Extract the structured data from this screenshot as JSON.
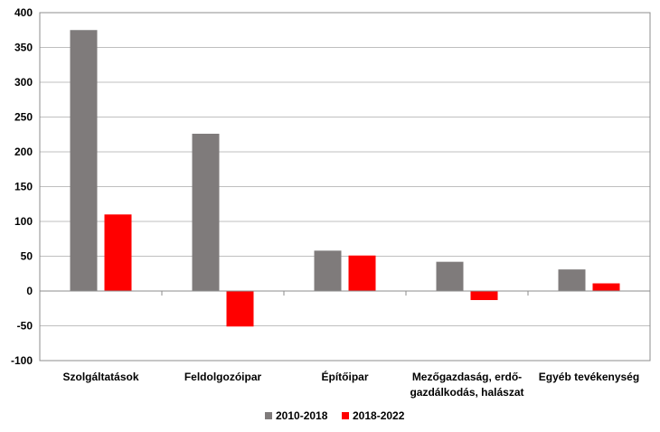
{
  "chart_data": {
    "type": "bar",
    "categories": [
      [
        "Szolgáltatások"
      ],
      [
        "Feldolgozóipar"
      ],
      [
        "Építőipar"
      ],
      [
        "Mezőgazdaság, erdő-",
        "gazdálkodás, halászat"
      ],
      [
        "Egyéb tevékenység"
      ]
    ],
    "series": [
      {
        "name": "2010-2018",
        "color": "#7f7b7b",
        "values": [
          375,
          226,
          58,
          42,
          31
        ]
      },
      {
        "name": "2018-2022",
        "color": "#ff0000",
        "values": [
          110,
          -51,
          51,
          -13,
          11
        ]
      }
    ],
    "ylim": [
      -100,
      400
    ],
    "yticks": [
      -100,
      -50,
      0,
      50,
      100,
      150,
      200,
      250,
      300,
      350,
      400
    ],
    "grid": true,
    "legend": "bottom-center",
    "title": "",
    "xlabel": "",
    "ylabel": ""
  }
}
